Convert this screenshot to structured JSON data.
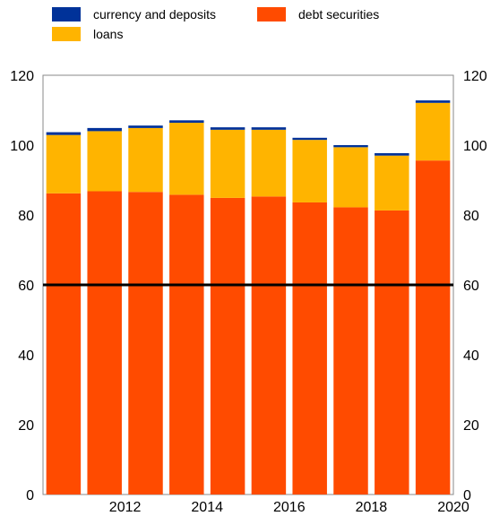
{
  "chart_data": {
    "type": "bar",
    "stacked": true,
    "title": "",
    "xlabel": "",
    "ylabel": "",
    "ylim": [
      0,
      120
    ],
    "yticks": [
      0,
      20,
      40,
      60,
      80,
      100,
      120
    ],
    "y_axis_both_sides": true,
    "categories": [
      "2011",
      "2012",
      "2013",
      "2014",
      "2015",
      "2016",
      "2017",
      "2018",
      "2019",
      "2020"
    ],
    "x_tick_labels": [
      "2012",
      "2014",
      "2016",
      "2018",
      "2020"
    ],
    "series": [
      {
        "name": "debt securities",
        "color": "#ff4b00",
        "values": [
          86.2,
          86.8,
          86.6,
          85.8,
          84.9,
          85.3,
          83.6,
          82.2,
          81.3,
          95.6
        ]
      },
      {
        "name": "loans",
        "color": "#ffb400",
        "values": [
          16.7,
          17.2,
          18.3,
          20.6,
          19.5,
          19.1,
          17.9,
          17.2,
          15.7,
          16.5
        ]
      },
      {
        "name": "currency and deposits",
        "color": "#003299",
        "values": [
          0.8,
          0.9,
          0.7,
          0.7,
          0.7,
          0.7,
          0.6,
          0.6,
          0.7,
          0.7
        ]
      }
    ],
    "reference_line": {
      "value": 60,
      "color": "#000000"
    },
    "legend": {
      "position": "top",
      "entries": [
        {
          "label": "currency and deposits",
          "color": "#003299"
        },
        {
          "label": "debt securities",
          "color": "#ff4b00"
        },
        {
          "label": "loans",
          "color": "#ffb400"
        }
      ]
    }
  }
}
